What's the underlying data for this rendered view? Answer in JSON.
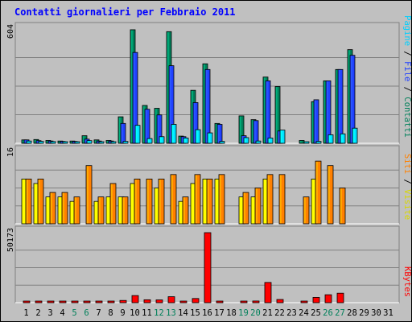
{
  "chart_data": {
    "type": "bar",
    "title": "Contatti giornalieri per Febbraio 2011",
    "categories": [
      "1",
      "2",
      "3",
      "4",
      "5",
      "6",
      "7",
      "8",
      "9",
      "10",
      "11",
      "12",
      "13",
      "14",
      "15",
      "16",
      "17",
      "18",
      "19",
      "20",
      "21",
      "22",
      "23",
      "24",
      "25",
      "26",
      "27",
      "28",
      "29",
      "30",
      "31"
    ],
    "weekend_days": [
      "5",
      "6",
      "12",
      "13",
      "19",
      "20",
      "26",
      "27"
    ],
    "panels": [
      {
        "ymax_label": "604",
        "ymax": 604,
        "series": [
          {
            "name": "Pagine",
            "color": "#00e0ff",
            "values": [
              12,
              10,
              9,
              8,
              8,
              14,
              8,
              8,
              10,
              95,
              25,
              35,
              100,
              28,
              72,
              55,
              10,
              0,
              30,
              12,
              28,
              70,
              0,
              6,
              10,
              45,
              50,
              80,
              0,
              0,
              0
            ]
          },
          {
            "name": "File",
            "color": "#2040ff",
            "values": [
              18,
              14,
              12,
              10,
              10,
              22,
              12,
              12,
              105,
              480,
              180,
              150,
              410,
              35,
              215,
              390,
              100,
              0,
              40,
              120,
              330,
              65,
              0,
              0,
              230,
              330,
              390,
              465,
              0,
              0,
              0
            ]
          },
          {
            "name": "Contatti",
            "color": "#00805a",
            "values": [
              18,
              20,
              15,
              12,
              12,
              40,
              18,
              15,
              140,
              600,
              200,
              185,
              590,
              38,
              280,
              420,
              105,
              0,
              145,
              125,
              350,
              300,
              0,
              15,
              220,
              330,
              390,
              495,
              0,
              0,
              0
            ]
          }
        ]
      },
      {
        "ymax_label": "16",
        "ymax": 16,
        "series": [
          {
            "name": "Siti",
            "color": "#ffff00",
            "values": [
              10,
              9,
              6,
              6,
              5,
              0,
              5,
              6,
              6,
              9,
              0,
              8,
              0,
              5,
              9,
              10,
              10,
              0,
              6,
              6,
              10,
              0,
              0,
              0,
              10,
              0,
              0,
              0,
              0,
              0,
              0
            ]
          },
          {
            "name": "Visite",
            "color": "#ff8000",
            "values": [
              10,
              10,
              7,
              7,
              6,
              13,
              6,
              9,
              6,
              10,
              10,
              10,
              11,
              6,
              11,
              10,
              11,
              0,
              7,
              8,
              11,
              11,
              0,
              6,
              14,
              13,
              8,
              0,
              0,
              0,
              0
            ]
          }
        ]
      },
      {
        "ymax_label": "50173",
        "ymax": 50173,
        "series": [
          {
            "name": "KBytes",
            "color": "#ff0000",
            "values": [
              50,
              50,
              50,
              50,
              50,
              50,
              50,
              600,
              1600,
              5100,
              2100,
              2000,
              4300,
              600,
              3000,
              50173,
              800,
              0,
              50,
              1200,
              14500,
              2300,
              0,
              100,
              3800,
              5700,
              6800,
              0,
              0,
              0,
              0
            ]
          }
        ]
      }
    ],
    "legend_top": [
      {
        "text": "Pagine",
        "color": "#00d0ff"
      },
      {
        "text": " / ",
        "color": "#000000"
      },
      {
        "text": "File",
        "color": "#2040ff"
      },
      {
        "text": " / ",
        "color": "#000000"
      },
      {
        "text": "Contatti",
        "color": "#00805a"
      }
    ],
    "legend_mid": [
      {
        "text": "Siti",
        "color": "#ff8000"
      },
      {
        "text": " / ",
        "color": "#000000"
      },
      {
        "text": "Visite",
        "color": "#d8d800"
      }
    ],
    "legend_bottom": [
      {
        "text": "KBytes",
        "color": "#ff0000"
      }
    ],
    "colors": {
      "background": "#c0c0c0",
      "plot_background": "#c0c0c0",
      "title": "#0000ff",
      "weekday_label": "#000000",
      "weekend_label": "#00805a"
    }
  }
}
